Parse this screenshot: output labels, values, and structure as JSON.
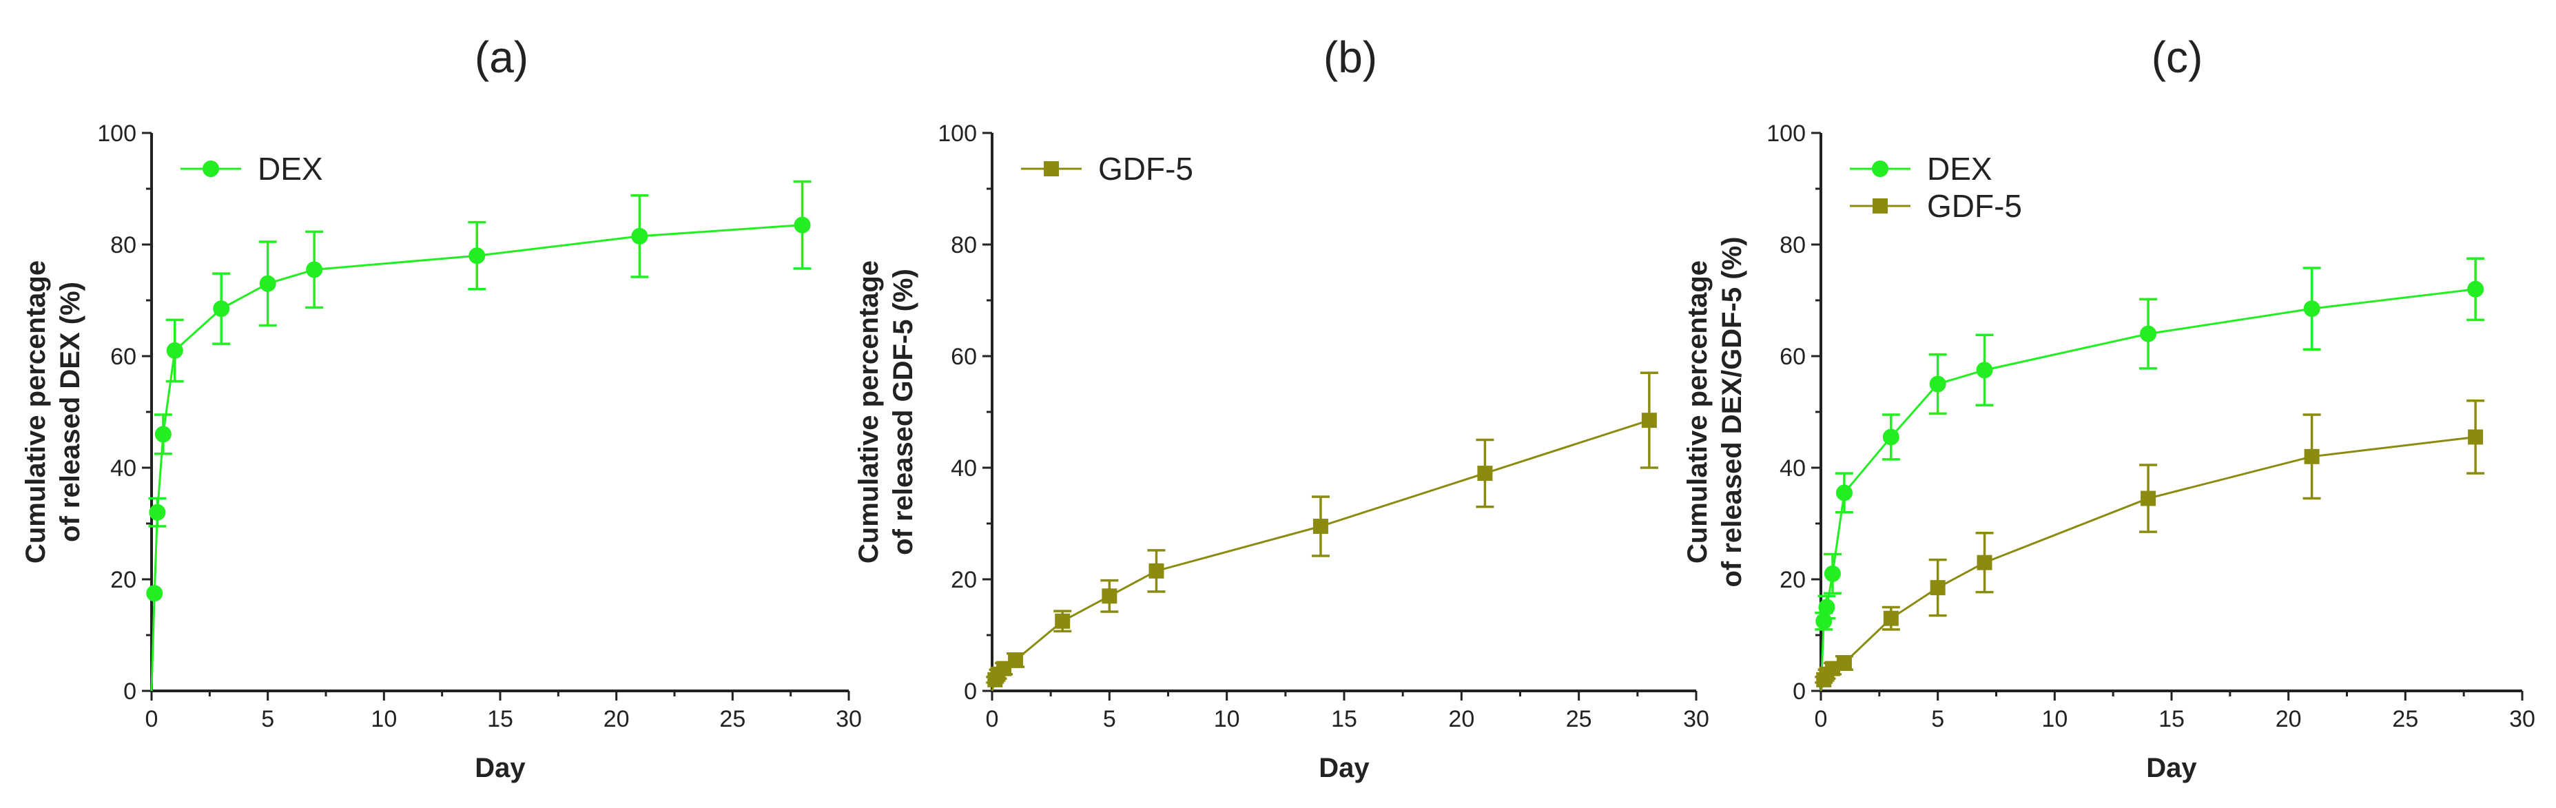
{
  "chart_data": [
    {
      "panel_label": "(a)",
      "type": "line",
      "xlabel": "Day",
      "ylabel_lines": [
        "Cumulative percentage",
        "of released DEX (%)"
      ],
      "xlim": [
        0,
        30
      ],
      "ylim": [
        0,
        100
      ],
      "x_ticks": [
        0,
        5,
        10,
        15,
        20,
        25,
        30
      ],
      "y_ticks": [
        0,
        20,
        40,
        60,
        80,
        100
      ],
      "grid": false,
      "legend_position": "top-left",
      "series": [
        {
          "name": "DEX",
          "marker": "circle",
          "color": "#22ee22",
          "x": [
            0,
            0.125,
            0.25,
            0.5,
            1,
            3,
            5,
            7,
            14,
            21,
            28
          ],
          "y": [
            0,
            17.5,
            32,
            46,
            61,
            68.5,
            73,
            75.5,
            78,
            81.5,
            83.5
          ],
          "err": [
            0,
            0,
            2.5,
            3.5,
            5.5,
            6.3,
            7.5,
            6.8,
            6,
            7.3,
            7.8
          ]
        }
      ]
    },
    {
      "panel_label": "(b)",
      "type": "line",
      "xlabel": "Day",
      "ylabel_lines": [
        "Cumulative percentage",
        "of released GDF-5 (%)"
      ],
      "xlim": [
        0,
        30
      ],
      "ylim": [
        0,
        100
      ],
      "x_ticks": [
        0,
        5,
        10,
        15,
        20,
        25,
        30
      ],
      "y_ticks": [
        0,
        20,
        40,
        60,
        80,
        100
      ],
      "grid": false,
      "legend_position": "top-left",
      "series": [
        {
          "name": "GDF-5",
          "marker": "square",
          "color": "#8b8b10",
          "x": [
            0,
            0.125,
            0.25,
            0.5,
            1,
            3,
            5,
            7,
            14,
            21,
            28
          ],
          "y": [
            0,
            2,
            3,
            4,
            5.5,
            12.5,
            17,
            21.5,
            29.5,
            39,
            48.5
          ],
          "err": [
            0,
            0.5,
            0.8,
            1,
            1.2,
            1.8,
            2.8,
            3.7,
            5.3,
            6,
            8.5
          ]
        }
      ]
    },
    {
      "panel_label": "(c)",
      "type": "line",
      "xlabel": "Day",
      "ylabel_lines": [
        "Cumulative percentage",
        "of released DEX/GDF-5 (%)"
      ],
      "xlim": [
        0,
        30
      ],
      "ylim": [
        0,
        100
      ],
      "x_ticks": [
        0,
        5,
        10,
        15,
        20,
        25,
        30
      ],
      "y_ticks": [
        0,
        20,
        40,
        60,
        80,
        100
      ],
      "grid": false,
      "legend_position": "top-left",
      "series": [
        {
          "name": "DEX",
          "marker": "circle",
          "color": "#22ee22",
          "x": [
            0,
            0.125,
            0.25,
            0.5,
            1,
            3,
            5,
            7,
            14,
            21,
            28
          ],
          "y": [
            0,
            12.5,
            15,
            21,
            35.5,
            45.5,
            55,
            57.5,
            64,
            68.5,
            72
          ],
          "err": [
            0,
            1.5,
            2,
            3.5,
            3.5,
            4,
            5.3,
            6.3,
            6.2,
            7.3,
            5.5
          ]
        },
        {
          "name": "GDF-5",
          "marker": "square",
          "color": "#8b8b10",
          "x": [
            0,
            0.125,
            0.25,
            0.5,
            1,
            3,
            5,
            7,
            14,
            21,
            28
          ],
          "y": [
            0,
            2,
            3,
            4,
            5,
            13,
            18.5,
            23,
            34.5,
            42,
            45.5
          ],
          "err": [
            0,
            0.5,
            0.8,
            1,
            1.2,
            2,
            5,
            5.3,
            6,
            7.5,
            6.5
          ]
        }
      ]
    }
  ]
}
